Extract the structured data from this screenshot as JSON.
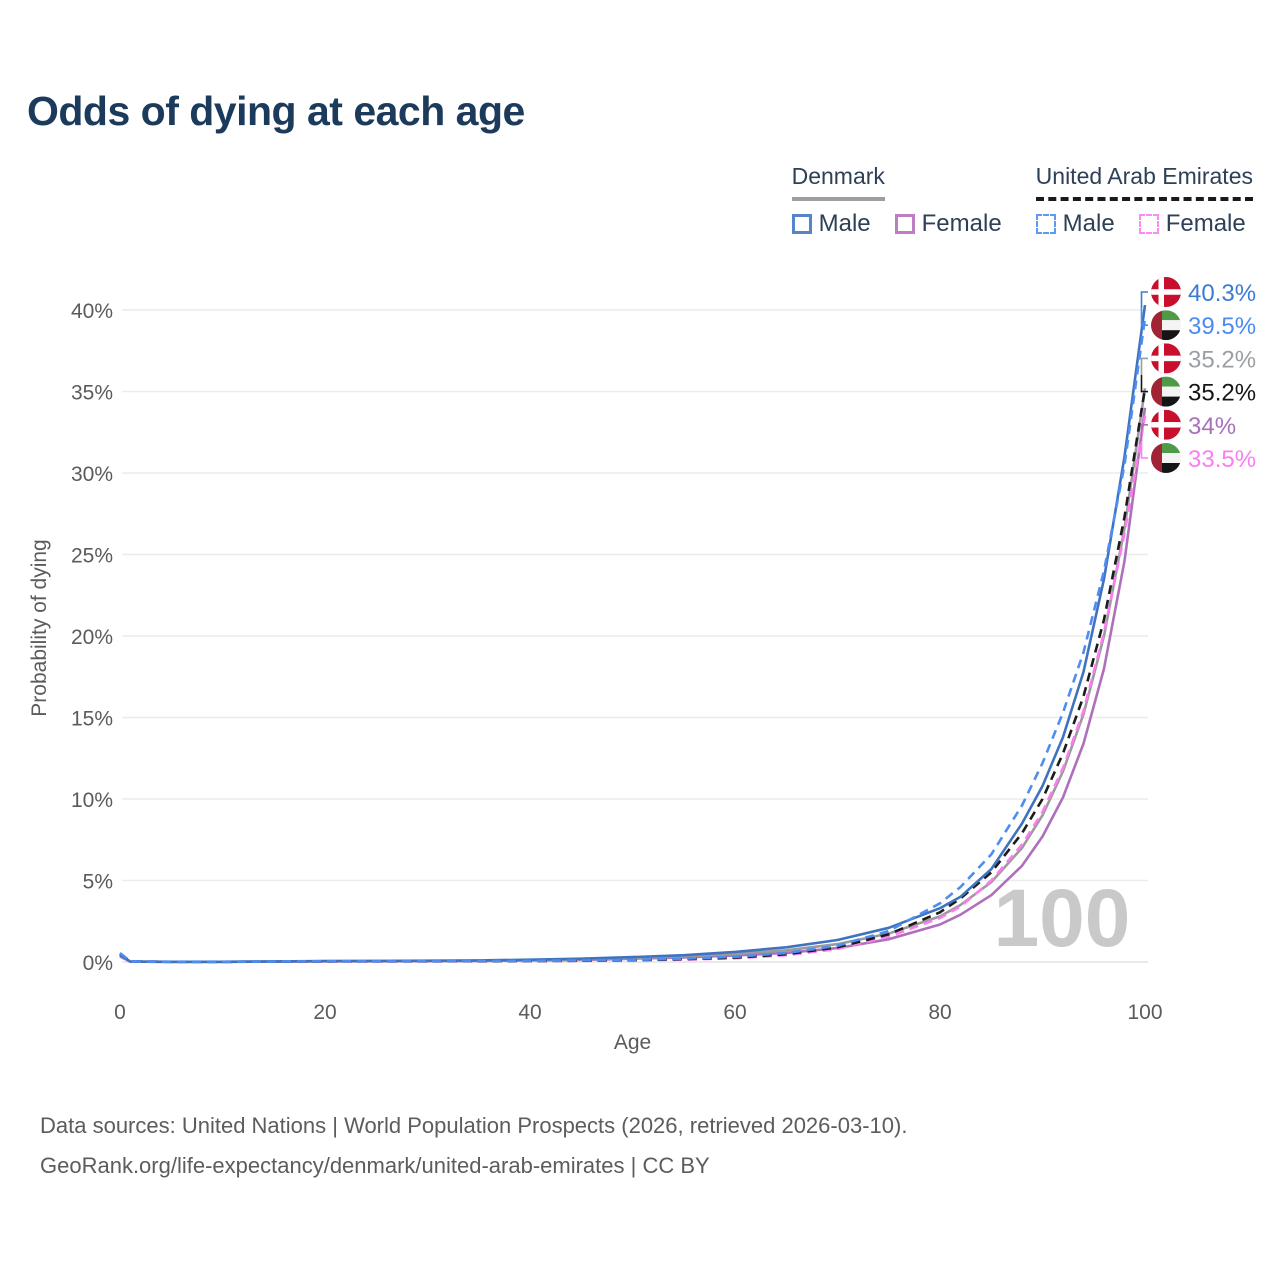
{
  "header": {
    "title": "Odds of dying at each age"
  },
  "legend": {
    "groups": [
      {
        "label": "Denmark",
        "underline_style": "solid",
        "underline_color": "#9e9e9e",
        "items": [
          {
            "label": "Male",
            "color": "#5585c8",
            "dash": false
          },
          {
            "label": "Female",
            "color": "#bd7fc4",
            "dash": false
          }
        ]
      },
      {
        "label": "United Arab Emirates",
        "underline_style": "dashed",
        "underline_color": "#1a1a1a",
        "items": [
          {
            "label": "Male",
            "color": "#5b9bf3",
            "dash": true
          },
          {
            "label": "Female",
            "color": "#ff8af3",
            "dash": true
          }
        ]
      }
    ]
  },
  "chart_data": {
    "type": "line",
    "title": "Odds of dying at each age",
    "xlabel": "Age",
    "ylabel": "Probability of dying",
    "xlim": [
      0,
      100
    ],
    "ylim": [
      0,
      41.5
    ],
    "x_ticks": [
      0,
      20,
      40,
      60,
      80,
      100
    ],
    "y_ticks": [
      0,
      5,
      10,
      15,
      20,
      25,
      30,
      35,
      40
    ],
    "y_tick_suffix": "%",
    "grid": "horizontal",
    "hover_age_label": "100",
    "x": [
      0,
      1,
      2,
      5,
      10,
      15,
      20,
      25,
      30,
      35,
      40,
      45,
      50,
      55,
      60,
      65,
      70,
      75,
      80,
      82,
      85,
      88,
      90,
      92,
      94,
      96,
      98,
      100
    ],
    "series": [
      {
        "name": "Denmark Female",
        "country": "Denmark",
        "sex": "Female",
        "flag": "dk",
        "line_style": "solid",
        "color": "#ae70ba",
        "end_label": "34%",
        "label_color": "#a871b8",
        "values": [
          0.34,
          0.022,
          0.016,
          0.01,
          0.011,
          0.02,
          0.035,
          0.045,
          0.05,
          0.065,
          0.09,
          0.13,
          0.2,
          0.28,
          0.4,
          0.56,
          0.85,
          1.4,
          2.3,
          2.9,
          4.1,
          5.9,
          7.7,
          10.1,
          13.4,
          18.0,
          24.6,
          34.0
        ]
      },
      {
        "name": "Denmark Both sexes",
        "country": "Denmark",
        "sex": "Both",
        "flag": "dk",
        "line_style": "solid",
        "color": "#9b9b9b",
        "end_label": "35.2%",
        "label_color": "#9b9ea3",
        "values": [
          0.38,
          0.025,
          0.018,
          0.011,
          0.013,
          0.025,
          0.05,
          0.06,
          0.065,
          0.08,
          0.11,
          0.16,
          0.24,
          0.34,
          0.5,
          0.72,
          1.1,
          1.75,
          2.8,
          3.5,
          4.9,
          7.0,
          9.0,
          11.7,
          15.2,
          20.0,
          26.6,
          35.2
        ]
      },
      {
        "name": "United Arab Emirates Female",
        "country": "United Arab Emirates",
        "sex": "Female",
        "flag": "ae",
        "line_style": "dashed",
        "color": "#fb7df0",
        "end_label": "33.5%",
        "label_color": "#fb7df0",
        "values": [
          0.44,
          0.035,
          0.022,
          0.012,
          0.012,
          0.02,
          0.028,
          0.032,
          0.036,
          0.045,
          0.055,
          0.07,
          0.1,
          0.15,
          0.23,
          0.42,
          0.8,
          1.55,
          2.7,
          3.4,
          5.0,
          7.2,
          9.2,
          11.9,
          15.4,
          20.2,
          26.3,
          33.5
        ]
      },
      {
        "name": "United Arab Emirates Both sexes",
        "country": "United Arab Emirates",
        "sex": "Both",
        "flag": "ae",
        "line_style": "dashed",
        "color": "#1c1c1c",
        "end_label": "35.2%",
        "label_color": "#16161a",
        "values": [
          0.5,
          0.04,
          0.025,
          0.015,
          0.015,
          0.025,
          0.035,
          0.04,
          0.045,
          0.05,
          0.06,
          0.08,
          0.11,
          0.17,
          0.27,
          0.48,
          0.9,
          1.7,
          3.05,
          3.9,
          5.5,
          7.9,
          10.0,
          12.8,
          16.3,
          21.0,
          27.3,
          35.2
        ]
      },
      {
        "name": "Denmark Male",
        "country": "Denmark",
        "sex": "Male",
        "flag": "dk",
        "line_style": "solid",
        "color": "#3f73bf",
        "end_label": "40.3%",
        "label_color": "#3b7bd4",
        "values": [
          0.42,
          0.03,
          0.02,
          0.012,
          0.015,
          0.035,
          0.06,
          0.07,
          0.08,
          0.1,
          0.14,
          0.2,
          0.3,
          0.42,
          0.62,
          0.9,
          1.35,
          2.1,
          3.3,
          4.0,
          5.7,
          8.5,
          10.8,
          13.8,
          17.8,
          23.5,
          31.0,
          40.3
        ]
      },
      {
        "name": "United Arab Emirates Male",
        "country": "United Arab Emirates",
        "sex": "Male",
        "flag": "ae",
        "line_style": "dashed",
        "color": "#4e8df2",
        "end_label": "39.5%",
        "label_color": "#4a8cf0",
        "values": [
          0.55,
          0.045,
          0.028,
          0.018,
          0.018,
          0.03,
          0.04,
          0.045,
          0.05,
          0.06,
          0.07,
          0.09,
          0.13,
          0.2,
          0.32,
          0.55,
          1.0,
          1.9,
          3.6,
          4.6,
          6.6,
          9.6,
          12.2,
          15.3,
          19.0,
          24.0,
          30.5,
          39.5
        ]
      }
    ],
    "label_order": [
      4,
      5,
      1,
      3,
      0,
      2
    ],
    "flag_colors": {
      "dk": {
        "red": "#c8102e",
        "cross": "#ffffff"
      },
      "ae": {
        "red": "#a02434",
        "green": "#4e9a47",
        "white": "#f4f4f4",
        "black": "#151515"
      }
    },
    "watermark_color": "#c9c9c9",
    "grid_color": "#ececec",
    "axis_line_color": "#e2e2e2",
    "tick_text_color": "#5b5b5b"
  },
  "footer": {
    "line1": "Data sources: United Nations | World Population Prospects (2026, retrieved 2026-03-10).",
    "line2": "GeoRank.org/life-expectancy/denmark/united-arab-emirates | CC BY"
  }
}
